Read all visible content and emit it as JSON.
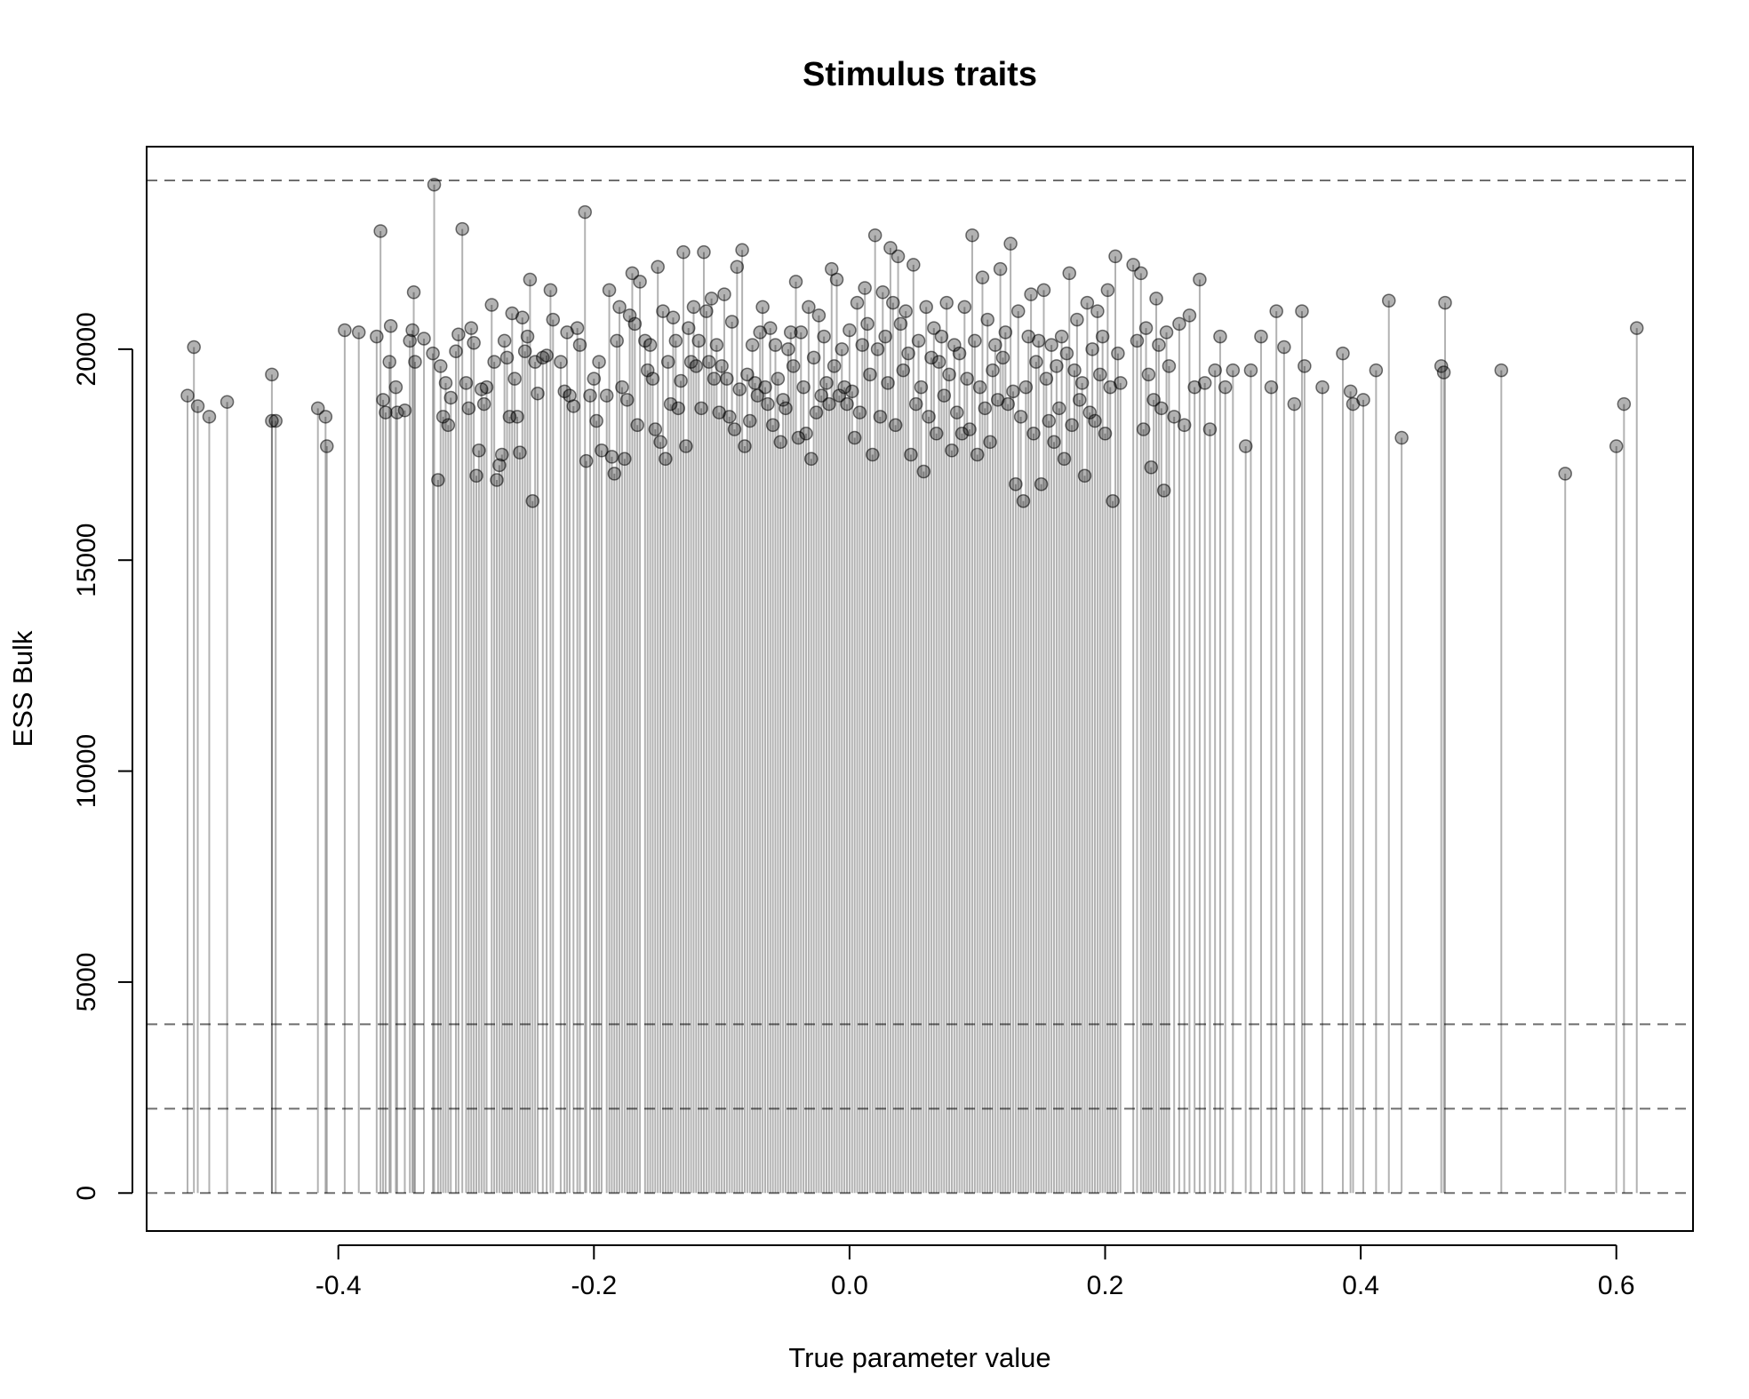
{
  "chart_data": {
    "type": "scatter",
    "style": "lollipop",
    "title": "Stimulus traits",
    "xlabel": "True parameter value",
    "ylabel": "ESS Bulk",
    "xlim": [
      -0.55,
      0.66
    ],
    "ylim": [
      -900,
      24800
    ],
    "x_ticks": [
      -0.4,
      -0.2,
      0.0,
      0.2,
      0.4,
      0.6
    ],
    "x_tick_labels": [
      "-0.4",
      "-0.2",
      "0.0",
      "0.2",
      "0.4",
      "0.6"
    ],
    "y_ticks": [
      0,
      5000,
      10000,
      15000,
      20000
    ],
    "y_tick_labels": [
      "0",
      "5000",
      "10000",
      "15000",
      "20000"
    ],
    "reference_lines_y": [
      0,
      2000,
      4000,
      24000
    ],
    "reference_line_style": "dashed",
    "point_color": "#000000",
    "point_opacity": 0.3,
    "grid": false,
    "legend": "none",
    "points": [
      [
        -0.518,
        18900
      ],
      [
        -0.513,
        20050
      ],
      [
        -0.51,
        18650
      ],
      [
        -0.501,
        18400
      ],
      [
        -0.487,
        18750
      ],
      [
        -0.452,
        19400
      ],
      [
        -0.452,
        18300
      ],
      [
        -0.449,
        18300
      ],
      [
        -0.416,
        18600
      ],
      [
        -0.41,
        18400
      ],
      [
        -0.409,
        17700
      ],
      [
        -0.395,
        20450
      ],
      [
        -0.384,
        20400
      ],
      [
        -0.37,
        20300
      ],
      [
        -0.367,
        22800
      ],
      [
        -0.365,
        18800
      ],
      [
        -0.363,
        18500
      ],
      [
        -0.36,
        19700
      ],
      [
        -0.359,
        20550
      ],
      [
        -0.355,
        19100
      ],
      [
        -0.354,
        18500
      ],
      [
        -0.348,
        18550
      ],
      [
        -0.344,
        20200
      ],
      [
        -0.342,
        20450
      ],
      [
        -0.341,
        21350
      ],
      [
        -0.34,
        19700
      ],
      [
        -0.333,
        20250
      ],
      [
        -0.326,
        19900
      ],
      [
        -0.325,
        23900
      ],
      [
        -0.322,
        16900
      ],
      [
        -0.32,
        19600
      ],
      [
        -0.318,
        18400
      ],
      [
        -0.316,
        19200
      ],
      [
        -0.314,
        18200
      ],
      [
        -0.312,
        18850
      ],
      [
        -0.308,
        19950
      ],
      [
        -0.306,
        20350
      ],
      [
        -0.303,
        22850
      ],
      [
        -0.3,
        19200
      ],
      [
        -0.298,
        18600
      ],
      [
        -0.296,
        20500
      ],
      [
        -0.294,
        20150
      ],
      [
        -0.292,
        17000
      ],
      [
        -0.29,
        17600
      ],
      [
        -0.288,
        19050
      ],
      [
        -0.286,
        18700
      ],
      [
        -0.284,
        19100
      ],
      [
        -0.28,
        21050
      ],
      [
        -0.278,
        19700
      ],
      [
        -0.276,
        16900
      ],
      [
        -0.274,
        17250
      ],
      [
        -0.272,
        17500
      ],
      [
        -0.27,
        20200
      ],
      [
        -0.268,
        19800
      ],
      [
        -0.266,
        18400
      ],
      [
        -0.264,
        20850
      ],
      [
        -0.262,
        19300
      ],
      [
        -0.26,
        18400
      ],
      [
        -0.258,
        17550
      ],
      [
        -0.256,
        20750
      ],
      [
        -0.254,
        19950
      ],
      [
        -0.252,
        20300
      ],
      [
        -0.25,
        21650
      ],
      [
        -0.248,
        16400
      ],
      [
        -0.246,
        19700
      ],
      [
        -0.244,
        18950
      ],
      [
        -0.24,
        19800
      ],
      [
        -0.237,
        19850
      ],
      [
        -0.234,
        21400
      ],
      [
        -0.232,
        20700
      ],
      [
        -0.226,
        19700
      ],
      [
        -0.223,
        19000
      ],
      [
        -0.221,
        20400
      ],
      [
        -0.219,
        18900
      ],
      [
        -0.216,
        18650
      ],
      [
        -0.213,
        20500
      ],
      [
        -0.211,
        20100
      ],
      [
        -0.207,
        23250
      ],
      [
        -0.206,
        17350
      ],
      [
        -0.203,
        18900
      ],
      [
        -0.2,
        19300
      ],
      [
        -0.198,
        18300
      ],
      [
        -0.196,
        19700
      ],
      [
        -0.194,
        17600
      ],
      [
        -0.19,
        18900
      ],
      [
        -0.188,
        21400
      ],
      [
        -0.186,
        17450
      ],
      [
        -0.184,
        17050
      ],
      [
        -0.182,
        20200
      ],
      [
        -0.18,
        21000
      ],
      [
        -0.178,
        19100
      ],
      [
        -0.176,
        17400
      ],
      [
        -0.174,
        18800
      ],
      [
        -0.172,
        20800
      ],
      [
        -0.17,
        21800
      ],
      [
        -0.168,
        20600
      ],
      [
        -0.166,
        18200
      ],
      [
        -0.164,
        21600
      ],
      [
        -0.16,
        20200
      ],
      [
        -0.158,
        19500
      ],
      [
        -0.156,
        20100
      ],
      [
        -0.154,
        19300
      ],
      [
        -0.152,
        18100
      ],
      [
        -0.15,
        21950
      ],
      [
        -0.148,
        17800
      ],
      [
        -0.146,
        20900
      ],
      [
        -0.144,
        17400
      ],
      [
        -0.142,
        19700
      ],
      [
        -0.14,
        18700
      ],
      [
        -0.138,
        20750
      ],
      [
        -0.136,
        20200
      ],
      [
        -0.134,
        18600
      ],
      [
        -0.132,
        19250
      ],
      [
        -0.13,
        22300
      ],
      [
        -0.128,
        17700
      ],
      [
        -0.126,
        20500
      ],
      [
        -0.124,
        19700
      ],
      [
        -0.122,
        21000
      ],
      [
        -0.12,
        19600
      ],
      [
        -0.118,
        20200
      ],
      [
        -0.116,
        18600
      ],
      [
        -0.114,
        22300
      ],
      [
        -0.112,
        20900
      ],
      [
        -0.11,
        19700
      ],
      [
        -0.108,
        21200
      ],
      [
        -0.106,
        19300
      ],
      [
        -0.104,
        20100
      ],
      [
        -0.102,
        18500
      ],
      [
        -0.1,
        19600
      ],
      [
        -0.098,
        21300
      ],
      [
        -0.096,
        19300
      ],
      [
        -0.094,
        18400
      ],
      [
        -0.092,
        20650
      ],
      [
        -0.09,
        18100
      ],
      [
        -0.088,
        21950
      ],
      [
        -0.086,
        19050
      ],
      [
        -0.084,
        22350
      ],
      [
        -0.082,
        17700
      ],
      [
        -0.08,
        19400
      ],
      [
        -0.078,
        18300
      ],
      [
        -0.076,
        20100
      ],
      [
        -0.074,
        19200
      ],
      [
        -0.072,
        18900
      ],
      [
        -0.07,
        20400
      ],
      [
        -0.068,
        21000
      ],
      [
        -0.066,
        19100
      ],
      [
        -0.064,
        18700
      ],
      [
        -0.062,
        20500
      ],
      [
        -0.06,
        18200
      ],
      [
        -0.058,
        20100
      ],
      [
        -0.056,
        19300
      ],
      [
        -0.054,
        17800
      ],
      [
        -0.052,
        18800
      ],
      [
        -0.05,
        18600
      ],
      [
        -0.048,
        20000
      ],
      [
        -0.046,
        20400
      ],
      [
        -0.044,
        19600
      ],
      [
        -0.042,
        21600
      ],
      [
        -0.04,
        17900
      ],
      [
        -0.038,
        20400
      ],
      [
        -0.036,
        19100
      ],
      [
        -0.034,
        18000
      ],
      [
        -0.032,
        21000
      ],
      [
        -0.03,
        17400
      ],
      [
        -0.028,
        19800
      ],
      [
        -0.026,
        18500
      ],
      [
        -0.024,
        20800
      ],
      [
        -0.022,
        18900
      ],
      [
        -0.02,
        20300
      ],
      [
        -0.018,
        19200
      ],
      [
        -0.016,
        18700
      ],
      [
        -0.014,
        21900
      ],
      [
        -0.012,
        19600
      ],
      [
        -0.01,
        21650
      ],
      [
        -0.008,
        18900
      ],
      [
        -0.006,
        20000
      ],
      [
        -0.004,
        19100
      ],
      [
        -0.002,
        18700
      ],
      [
        0.0,
        20450
      ],
      [
        0.002,
        19000
      ],
      [
        0.004,
        17900
      ],
      [
        0.006,
        21100
      ],
      [
        0.008,
        18500
      ],
      [
        0.01,
        20100
      ],
      [
        0.012,
        21450
      ],
      [
        0.014,
        20600
      ],
      [
        0.016,
        19400
      ],
      [
        0.018,
        17500
      ],
      [
        0.02,
        22700
      ],
      [
        0.022,
        20000
      ],
      [
        0.024,
        18400
      ],
      [
        0.026,
        21350
      ],
      [
        0.028,
        20300
      ],
      [
        0.03,
        19200
      ],
      [
        0.032,
        22400
      ],
      [
        0.034,
        21100
      ],
      [
        0.036,
        18200
      ],
      [
        0.038,
        22200
      ],
      [
        0.04,
        20600
      ],
      [
        0.042,
        19500
      ],
      [
        0.044,
        20900
      ],
      [
        0.046,
        19900
      ],
      [
        0.048,
        17500
      ],
      [
        0.05,
        22000
      ],
      [
        0.052,
        18700
      ],
      [
        0.054,
        20200
      ],
      [
        0.056,
        19100
      ],
      [
        0.058,
        17100
      ],
      [
        0.06,
        21000
      ],
      [
        0.062,
        18400
      ],
      [
        0.064,
        19800
      ],
      [
        0.066,
        20500
      ],
      [
        0.068,
        18000
      ],
      [
        0.07,
        19700
      ],
      [
        0.072,
        20300
      ],
      [
        0.074,
        18900
      ],
      [
        0.076,
        21100
      ],
      [
        0.078,
        19400
      ],
      [
        0.08,
        17600
      ],
      [
        0.082,
        20100
      ],
      [
        0.084,
        18500
      ],
      [
        0.086,
        19900
      ],
      [
        0.088,
        18000
      ],
      [
        0.09,
        21000
      ],
      [
        0.092,
        19300
      ],
      [
        0.094,
        18100
      ],
      [
        0.096,
        22700
      ],
      [
        0.098,
        20200
      ],
      [
        0.1,
        17500
      ],
      [
        0.102,
        19100
      ],
      [
        0.104,
        21700
      ],
      [
        0.106,
        18600
      ],
      [
        0.108,
        20700
      ],
      [
        0.11,
        17800
      ],
      [
        0.112,
        19500
      ],
      [
        0.114,
        20100
      ],
      [
        0.116,
        18800
      ],
      [
        0.118,
        21900
      ],
      [
        0.12,
        19800
      ],
      [
        0.122,
        20400
      ],
      [
        0.124,
        18700
      ],
      [
        0.126,
        22500
      ],
      [
        0.128,
        19000
      ],
      [
        0.13,
        16800
      ],
      [
        0.132,
        20900
      ],
      [
        0.134,
        18400
      ],
      [
        0.136,
        16400
      ],
      [
        0.138,
        19100
      ],
      [
        0.14,
        20300
      ],
      [
        0.142,
        21300
      ],
      [
        0.144,
        18000
      ],
      [
        0.146,
        19700
      ],
      [
        0.148,
        20200
      ],
      [
        0.15,
        16800
      ],
      [
        0.152,
        21400
      ],
      [
        0.154,
        19300
      ],
      [
        0.156,
        18300
      ],
      [
        0.158,
        20100
      ],
      [
        0.16,
        17800
      ],
      [
        0.162,
        19600
      ],
      [
        0.164,
        18600
      ],
      [
        0.166,
        20300
      ],
      [
        0.168,
        17400
      ],
      [
        0.17,
        19900
      ],
      [
        0.172,
        21800
      ],
      [
        0.174,
        18200
      ],
      [
        0.176,
        19500
      ],
      [
        0.178,
        20700
      ],
      [
        0.18,
        18800
      ],
      [
        0.182,
        19200
      ],
      [
        0.184,
        17000
      ],
      [
        0.186,
        21100
      ],
      [
        0.188,
        18500
      ],
      [
        0.19,
        20000
      ],
      [
        0.192,
        18300
      ],
      [
        0.194,
        20900
      ],
      [
        0.196,
        19400
      ],
      [
        0.198,
        20300
      ],
      [
        0.2,
        18000
      ],
      [
        0.202,
        21400
      ],
      [
        0.204,
        19100
      ],
      [
        0.206,
        16400
      ],
      [
        0.208,
        22200
      ],
      [
        0.21,
        19900
      ],
      [
        0.212,
        19200
      ],
      [
        0.222,
        22000
      ],
      [
        0.225,
        20200
      ],
      [
        0.228,
        21800
      ],
      [
        0.23,
        18100
      ],
      [
        0.232,
        20500
      ],
      [
        0.234,
        19400
      ],
      [
        0.236,
        17200
      ],
      [
        0.238,
        18800
      ],
      [
        0.24,
        21200
      ],
      [
        0.242,
        20100
      ],
      [
        0.244,
        18600
      ],
      [
        0.246,
        16650
      ],
      [
        0.248,
        20400
      ],
      [
        0.25,
        19600
      ],
      [
        0.254,
        18400
      ],
      [
        0.258,
        20600
      ],
      [
        0.262,
        18200
      ],
      [
        0.266,
        20800
      ],
      [
        0.27,
        19100
      ],
      [
        0.274,
        21650
      ],
      [
        0.278,
        19200
      ],
      [
        0.282,
        18100
      ],
      [
        0.286,
        19500
      ],
      [
        0.29,
        20300
      ],
      [
        0.294,
        19100
      ],
      [
        0.3,
        19500
      ],
      [
        0.31,
        17700
      ],
      [
        0.314,
        19500
      ],
      [
        0.322,
        20300
      ],
      [
        0.33,
        19100
      ],
      [
        0.334,
        20900
      ],
      [
        0.34,
        20050
      ],
      [
        0.348,
        18700
      ],
      [
        0.354,
        20900
      ],
      [
        0.356,
        19600
      ],
      [
        0.37,
        19100
      ],
      [
        0.386,
        19900
      ],
      [
        0.392,
        19000
      ],
      [
        0.394,
        18700
      ],
      [
        0.402,
        18800
      ],
      [
        0.412,
        19500
      ],
      [
        0.422,
        21150
      ],
      [
        0.432,
        17900
      ],
      [
        0.463,
        19600
      ],
      [
        0.465,
        19450
      ],
      [
        0.466,
        21100
      ],
      [
        0.51,
        19500
      ],
      [
        0.56,
        17050
      ],
      [
        0.6,
        17700
      ],
      [
        0.606,
        18700
      ],
      [
        0.616,
        20500
      ]
    ]
  }
}
